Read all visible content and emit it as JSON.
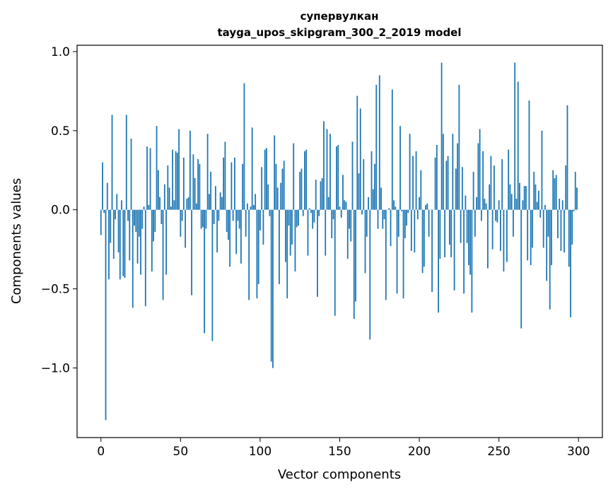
{
  "chart_data": {
    "type": "bar",
    "title": "супервулкан",
    "subtitle": "tayga_upos_skipgram_300_2_2019 model",
    "xlabel": "Vector components",
    "ylabel": "Components values",
    "xlim": [
      -15,
      315
    ],
    "ylim": [
      -1.44,
      1.04
    ],
    "xticks": [
      0,
      50,
      100,
      150,
      200,
      250,
      300
    ],
    "xtick_labels": [
      "0",
      "50",
      "100",
      "150",
      "200",
      "250",
      "300"
    ],
    "yticks": [
      -1.0,
      -0.5,
      0.0,
      0.5,
      1.0
    ],
    "ytick_labels": [
      "−1.0",
      "−0.5",
      "0.0",
      "0.5",
      "1.0"
    ],
    "grid": false,
    "bar_color": "#1f77b4",
    "values": [
      -0.16,
      0.3,
      -0.02,
      -1.33,
      0.17,
      -0.44,
      -0.21,
      0.6,
      -0.31,
      -0.06,
      0.1,
      -0.27,
      -0.44,
      0.06,
      -0.42,
      -0.43,
      0.6,
      -0.07,
      -0.32,
      0.45,
      -0.62,
      -0.1,
      -0.14,
      -0.34,
      -0.17,
      -0.41,
      -0.12,
      0.02,
      -0.61,
      0.4,
      0.03,
      0.39,
      -0.39,
      -0.2,
      -0.14,
      0.53,
      0.25,
      0.08,
      -0.09,
      -0.57,
      0.16,
      -0.41,
      0.28,
      0.14,
      0.02,
      0.38,
      0.06,
      0.37,
      0.36,
      0.51,
      -0.17,
      -0.07,
      0.33,
      -0.24,
      0.07,
      0.08,
      0.5,
      -0.54,
      0.35,
      0.2,
      0.04,
      0.32,
      0.29,
      -0.12,
      -0.11,
      -0.78,
      -0.12,
      0.48,
      0.1,
      0.24,
      -0.83,
      -0.09,
      0.15,
      -0.27,
      -0.07,
      0.11,
      0.08,
      0.33,
      0.43,
      -0.14,
      -0.19,
      -0.36,
      0.3,
      -0.07,
      0.33,
      -0.28,
      -0.07,
      -0.12,
      -0.34,
      0.29,
      0.8,
      -0.17,
      0.04,
      -0.57,
      0.02,
      0.52,
      0.03,
      0.1,
      -0.56,
      -0.47,
      -0.13,
      0.27,
      -0.22,
      0.38,
      0.39,
      0.16,
      -0.04,
      -0.96,
      -1.0,
      0.47,
      0.29,
      0.14,
      -0.47,
      0.17,
      0.26,
      0.31,
      -0.33,
      -0.56,
      -0.1,
      -0.29,
      -0.22,
      0.42,
      -0.39,
      -0.11,
      -0.1,
      0.24,
      0.26,
      -0.04,
      0.37,
      0.38,
      -0.29,
      0.01,
      -0.02,
      -0.12,
      -0.08,
      0.19,
      -0.55,
      -0.04,
      0.18,
      0.2,
      0.56,
      -0.29,
      0.51,
      0.08,
      0.48,
      -0.18,
      -0.06,
      -0.67,
      0.4,
      0.41,
      0.02,
      -0.05,
      0.22,
      0.06,
      0.05,
      -0.31,
      -0.12,
      -0.2,
      0.43,
      -0.69,
      -0.58,
      0.72,
      0.23,
      0.64,
      -0.03,
      0.32,
      -0.4,
      -0.17,
      0.08,
      -0.82,
      0.37,
      0.13,
      0.29,
      0.79,
      -0.12,
      0.85,
      0.14,
      -0.12,
      -0.06,
      -0.57,
      0.0,
      0.01,
      -0.23,
      0.76,
      0.06,
      0.02,
      -0.53,
      -0.17,
      0.53,
      -0.01,
      -0.56,
      -0.18,
      -0.1,
      -0.02,
      0.48,
      -0.26,
      0.34,
      -0.27,
      0.37,
      -0.06,
      0.08,
      0.25,
      -0.4,
      -0.36,
      0.03,
      0.04,
      -0.17,
      0.0,
      -0.52,
      0.0,
      0.33,
      0.41,
      -0.65,
      -0.31,
      0.93,
      0.48,
      -0.3,
      0.31,
      0.34,
      -0.22,
      -0.3,
      0.48,
      -0.51,
      0.26,
      0.42,
      0.79,
      -0.21,
      0.27,
      -0.53,
      0.09,
      -0.21,
      -0.35,
      -0.41,
      -0.65,
      0.24,
      -0.17,
      0.08,
      0.42,
      0.51,
      -0.07,
      0.37,
      0.07,
      0.04,
      -0.37,
      0.16,
      0.34,
      -0.25,
      0.28,
      -0.07,
      -0.08,
      0.06,
      -0.26,
      0.32,
      -0.39,
      0.0,
      -0.33,
      0.38,
      0.16,
      0.1,
      -0.17,
      0.93,
      0.07,
      0.81,
      0.17,
      -0.75,
      0.06,
      0.15,
      0.15,
      -0.32,
      0.69,
      -0.35,
      -0.24,
      0.24,
      0.16,
      0.05,
      0.12,
      -0.05,
      0.5,
      -0.24,
      0.03,
      -0.45,
      -0.17,
      -0.63,
      -0.35,
      0.25,
      0.2,
      0.22,
      -0.18,
      0.07,
      -0.26,
      0.06,
      -0.27,
      0.28,
      0.66,
      -0.36,
      -0.68,
      -0.22,
      -0.01,
      0.24,
      0.14
    ]
  }
}
